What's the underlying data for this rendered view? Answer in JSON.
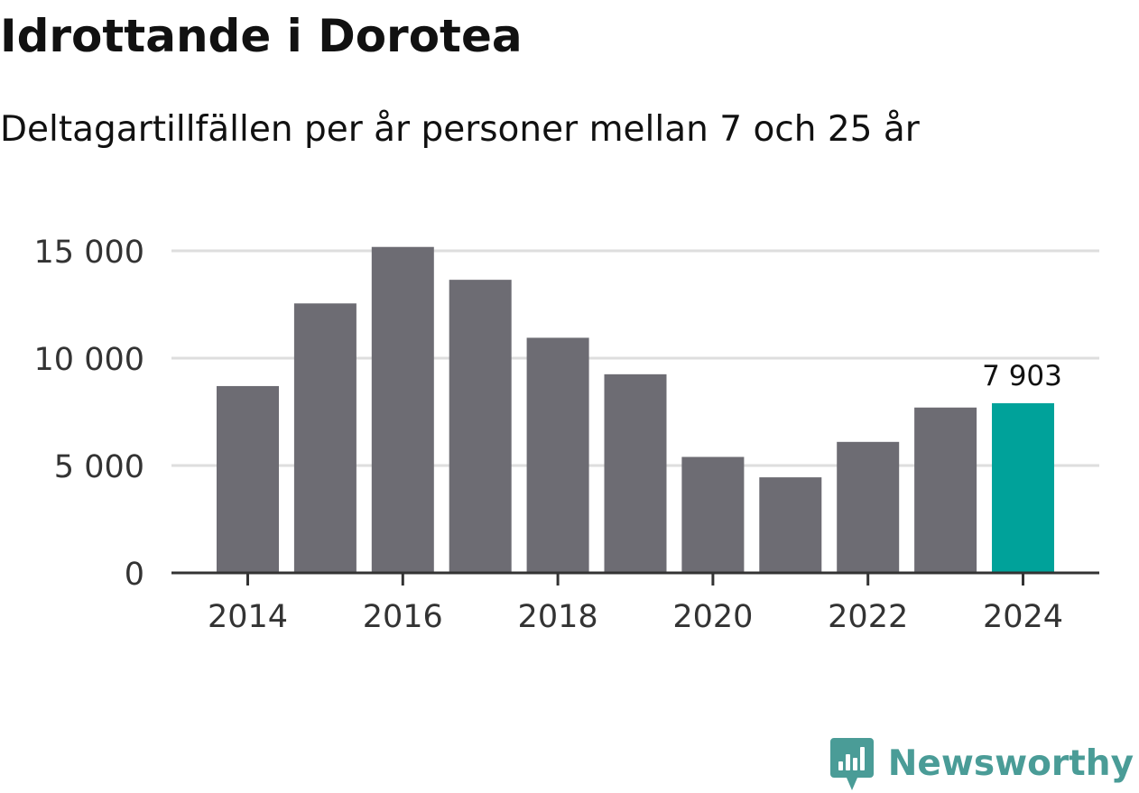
{
  "header": {
    "title": "Idrottande i Dorotea",
    "subtitle": "Deltagartillfällen per år personer mellan 7 och 25 år"
  },
  "brand": {
    "name": "Newsworthy",
    "color": "#4a9c97"
  },
  "colors": {
    "bar": "#6d6c73",
    "highlight": "#00a29a",
    "grid": "#dedede",
    "axis": "#333333",
    "tick_text": "#333333"
  },
  "chart_data": {
    "type": "bar",
    "title": "Idrottande i Dorotea",
    "subtitle": "Deltagartillfällen per år personer mellan 7 och 25 år",
    "xlabel": "",
    "ylabel": "",
    "categories": [
      2014,
      2015,
      2016,
      2017,
      2018,
      2019,
      2020,
      2021,
      2022,
      2023,
      2024
    ],
    "values": [
      8700,
      12550,
      15180,
      13650,
      10950,
      9250,
      5400,
      4450,
      6100,
      7700,
      7903
    ],
    "highlight_index": 10,
    "highlight_label": "7 903",
    "ylim": [
      0,
      15000
    ],
    "yticks": [
      0,
      5000,
      10000,
      15000
    ],
    "ytick_labels": [
      "0",
      "5 000",
      "10 000",
      "15 000"
    ],
    "xticks": [
      2014,
      2016,
      2018,
      2020,
      2022,
      2024
    ],
    "xtick_labels": [
      "2014",
      "2016",
      "2018",
      "2020",
      "2022",
      "2024"
    ],
    "grid": true,
    "legend": "none"
  }
}
